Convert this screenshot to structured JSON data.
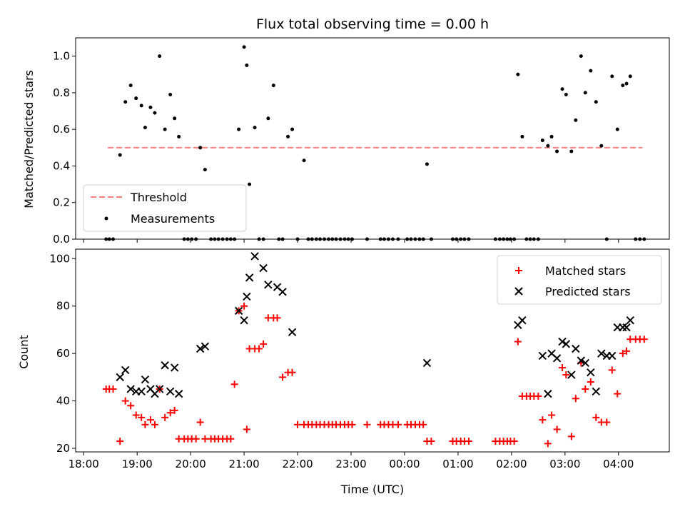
{
  "chart_data": [
    {
      "type": "scatter",
      "title": "Flux total observing time = 0.00 h",
      "xlabel": "",
      "ylabel": "Matched/Predicted stars",
      "ylim": [
        0,
        1.1
      ],
      "yticks": [
        "0.0",
        "0.2",
        "0.4",
        "0.6",
        "0.8",
        "1.0"
      ],
      "legend": {
        "placement": "lower-left",
        "entries": [
          "Threshold",
          "Measurements"
        ]
      },
      "threshold": {
        "name": "Threshold",
        "value": 0.5,
        "x_start": 18.45,
        "x_end": 28.45,
        "color": "#ff7f7f"
      },
      "series": [
        {
          "name": "Measurements",
          "color": "#000000",
          "points": [
            [
              18.42,
              0
            ],
            [
              18.48,
              0
            ],
            [
              18.55,
              0
            ],
            [
              18.68,
              0.46
            ],
            [
              18.78,
              0.75
            ],
            [
              18.88,
              0.84
            ],
            [
              18.98,
              0.77
            ],
            [
              19.08,
              0.73
            ],
            [
              19.15,
              0.61
            ],
            [
              19.25,
              0.72
            ],
            [
              19.33,
              0.69
            ],
            [
              19.42,
              1.0
            ],
            [
              19.52,
              0.6
            ],
            [
              19.62,
              0.79
            ],
            [
              19.7,
              0.66
            ],
            [
              19.78,
              0.56
            ],
            [
              19.88,
              0
            ],
            [
              19.95,
              0
            ],
            [
              20.02,
              0
            ],
            [
              20.1,
              0
            ],
            [
              20.18,
              0.5
            ],
            [
              20.27,
              0.38
            ],
            [
              20.38,
              0
            ],
            [
              20.45,
              0
            ],
            [
              20.52,
              0
            ],
            [
              20.6,
              0
            ],
            [
              20.68,
              0
            ],
            [
              20.75,
              0
            ],
            [
              20.82,
              0
            ],
            [
              20.9,
              0.6
            ],
            [
              21.0,
              1.05
            ],
            [
              21.05,
              0.95
            ],
            [
              21.1,
              0.3
            ],
            [
              21.2,
              0.61
            ],
            [
              21.28,
              0
            ],
            [
              21.36,
              0
            ],
            [
              21.45,
              0.66
            ],
            [
              21.55,
              0.84
            ],
            [
              21.65,
              0
            ],
            [
              21.72,
              0
            ],
            [
              21.82,
              0.56
            ],
            [
              21.9,
              0.6
            ],
            [
              22.0,
              0
            ],
            [
              22.12,
              0.43
            ],
            [
              22.2,
              0
            ],
            [
              22.27,
              0
            ],
            [
              22.35,
              0
            ],
            [
              22.42,
              0
            ],
            [
              22.5,
              0
            ],
            [
              22.58,
              0
            ],
            [
              22.65,
              0
            ],
            [
              22.72,
              0
            ],
            [
              22.8,
              0
            ],
            [
              22.88,
              0
            ],
            [
              22.95,
              0
            ],
            [
              23.02,
              0
            ],
            [
              23.3,
              0
            ],
            [
              23.55,
              0
            ],
            [
              23.62,
              0
            ],
            [
              23.7,
              0
            ],
            [
              23.78,
              0
            ],
            [
              23.88,
              0
            ],
            [
              24.05,
              0
            ],
            [
              24.12,
              0
            ],
            [
              24.2,
              0
            ],
            [
              24.28,
              0
            ],
            [
              24.35,
              0
            ],
            [
              24.42,
              0.41
            ],
            [
              24.5,
              0
            ],
            [
              24.9,
              0
            ],
            [
              24.97,
              0
            ],
            [
              25.05,
              0
            ],
            [
              25.12,
              0
            ],
            [
              25.2,
              0
            ],
            [
              25.7,
              0
            ],
            [
              25.78,
              0
            ],
            [
              25.85,
              0
            ],
            [
              25.92,
              0
            ],
            [
              25.98,
              0
            ],
            [
              26.05,
              0
            ],
            [
              26.12,
              0.9
            ],
            [
              26.2,
              0.56
            ],
            [
              26.28,
              0
            ],
            [
              26.35,
              0
            ],
            [
              26.42,
              0
            ],
            [
              26.5,
              0
            ],
            [
              26.58,
              0.54
            ],
            [
              26.68,
              0.51
            ],
            [
              26.75,
              0.56
            ],
            [
              26.85,
              0.48
            ],
            [
              26.95,
              0.82
            ],
            [
              27.02,
              0.79
            ],
            [
              27.12,
              0.48
            ],
            [
              27.2,
              0.65
            ],
            [
              27.3,
              1.0
            ],
            [
              27.38,
              0.8
            ],
            [
              27.48,
              0.92
            ],
            [
              27.58,
              0.75
            ],
            [
              27.68,
              0.51
            ],
            [
              27.78,
              0
            ],
            [
              27.88,
              0.89
            ],
            [
              27.98,
              0.6
            ],
            [
              28.08,
              0.84
            ],
            [
              28.15,
              0.85
            ],
            [
              28.22,
              0.89
            ],
            [
              28.32,
              0
            ],
            [
              28.4,
              0
            ],
            [
              28.48,
              0
            ]
          ]
        }
      ]
    },
    {
      "type": "scatter",
      "title": "",
      "xlabel": "Time (UTC)",
      "ylabel": "Count",
      "xlim": [
        17.85,
        28.95
      ],
      "ylim": [
        18.5,
        104
      ],
      "yticks": [
        "20",
        "40",
        "60",
        "80",
        "100"
      ],
      "xticks": [
        {
          "value": 18,
          "label": "18:00"
        },
        {
          "value": 19,
          "label": "19:00"
        },
        {
          "value": 20,
          "label": "20:00"
        },
        {
          "value": 21,
          "label": "21:00"
        },
        {
          "value": 22,
          "label": "22:00"
        },
        {
          "value": 23,
          "label": "23:00"
        },
        {
          "value": 24,
          "label": "00:00"
        },
        {
          "value": 25,
          "label": "01:00"
        },
        {
          "value": 26,
          "label": "02:00"
        },
        {
          "value": 27,
          "label": "03:00"
        },
        {
          "value": 28,
          "label": "04:00"
        }
      ],
      "legend": {
        "placement": "top-right",
        "entries": [
          "Matched stars",
          "Predicted stars"
        ]
      },
      "series": [
        {
          "name": "Matched stars",
          "marker": "plus",
          "color": "#ff0000",
          "points": [
            [
              18.42,
              45
            ],
            [
              18.48,
              45
            ],
            [
              18.55,
              45
            ],
            [
              18.68,
              23
            ],
            [
              18.78,
              40
            ],
            [
              18.88,
              38
            ],
            [
              18.98,
              34
            ],
            [
              19.08,
              33
            ],
            [
              19.15,
              30
            ],
            [
              19.25,
              32
            ],
            [
              19.33,
              30
            ],
            [
              19.42,
              45
            ],
            [
              19.52,
              33
            ],
            [
              19.62,
              35
            ],
            [
              19.7,
              36
            ],
            [
              19.78,
              24
            ],
            [
              19.88,
              24
            ],
            [
              19.95,
              24
            ],
            [
              20.02,
              24
            ],
            [
              20.1,
              24
            ],
            [
              20.18,
              31
            ],
            [
              20.27,
              24
            ],
            [
              20.38,
              24
            ],
            [
              20.45,
              24
            ],
            [
              20.52,
              24
            ],
            [
              20.6,
              24
            ],
            [
              20.68,
              24
            ],
            [
              20.75,
              24
            ],
            [
              20.82,
              47
            ],
            [
              20.9,
              78
            ],
            [
              21.0,
              80
            ],
            [
              21.05,
              28
            ],
            [
              21.1,
              62
            ],
            [
              21.2,
              62
            ],
            [
              21.28,
              62
            ],
            [
              21.36,
              64
            ],
            [
              21.45,
              75
            ],
            [
              21.55,
              75
            ],
            [
              21.62,
              75
            ],
            [
              21.72,
              50
            ],
            [
              21.82,
              52
            ],
            [
              21.9,
              52
            ],
            [
              22.0,
              30
            ],
            [
              22.12,
              30
            ],
            [
              22.2,
              30
            ],
            [
              22.27,
              30
            ],
            [
              22.35,
              30
            ],
            [
              22.42,
              30
            ],
            [
              22.5,
              30
            ],
            [
              22.58,
              30
            ],
            [
              22.65,
              30
            ],
            [
              22.72,
              30
            ],
            [
              22.8,
              30
            ],
            [
              22.88,
              30
            ],
            [
              22.95,
              30
            ],
            [
              23.02,
              30
            ],
            [
              23.3,
              30
            ],
            [
              23.55,
              30
            ],
            [
              23.62,
              30
            ],
            [
              23.7,
              30
            ],
            [
              23.78,
              30
            ],
            [
              23.88,
              30
            ],
            [
              24.05,
              30
            ],
            [
              24.12,
              30
            ],
            [
              24.2,
              30
            ],
            [
              24.28,
              30
            ],
            [
              24.35,
              30
            ],
            [
              24.42,
              23
            ],
            [
              24.5,
              23
            ],
            [
              24.9,
              23
            ],
            [
              24.97,
              23
            ],
            [
              25.05,
              23
            ],
            [
              25.12,
              23
            ],
            [
              25.2,
              23
            ],
            [
              25.7,
              23
            ],
            [
              25.78,
              23
            ],
            [
              25.85,
              23
            ],
            [
              25.92,
              23
            ],
            [
              25.98,
              23
            ],
            [
              26.05,
              23
            ],
            [
              26.12,
              65
            ],
            [
              26.2,
              42
            ],
            [
              26.28,
              42
            ],
            [
              26.35,
              42
            ],
            [
              26.42,
              42
            ],
            [
              26.5,
              42
            ],
            [
              26.58,
              32
            ],
            [
              26.68,
              22
            ],
            [
              26.75,
              34
            ],
            [
              26.85,
              28
            ],
            [
              26.95,
              54
            ],
            [
              27.02,
              51
            ],
            [
              27.12,
              25
            ],
            [
              27.2,
              41
            ],
            [
              27.3,
              56
            ],
            [
              27.38,
              45
            ],
            [
              27.48,
              48
            ],
            [
              27.58,
              33
            ],
            [
              27.68,
              31
            ],
            [
              27.78,
              31
            ],
            [
              27.88,
              53
            ],
            [
              27.98,
              43
            ],
            [
              28.08,
              60
            ],
            [
              28.15,
              61
            ],
            [
              28.22,
              66
            ],
            [
              28.32,
              66
            ],
            [
              28.4,
              66
            ],
            [
              28.48,
              66
            ]
          ]
        },
        {
          "name": "Predicted stars",
          "marker": "x",
          "color": "#000000",
          "points": [
            [
              18.68,
              50
            ],
            [
              18.78,
              53
            ],
            [
              18.88,
              45
            ],
            [
              18.98,
              44
            ],
            [
              19.08,
              44
            ],
            [
              19.15,
              49
            ],
            [
              19.25,
              45
            ],
            [
              19.33,
              43
            ],
            [
              19.42,
              45
            ],
            [
              19.52,
              55
            ],
            [
              19.62,
              44
            ],
            [
              19.7,
              54
            ],
            [
              19.78,
              43
            ],
            [
              20.18,
              62
            ],
            [
              20.27,
              63
            ],
            [
              20.9,
              78
            ],
            [
              21.0,
              74
            ],
            [
              21.05,
              84
            ],
            [
              21.1,
              92
            ],
            [
              21.2,
              101
            ],
            [
              21.36,
              96
            ],
            [
              21.45,
              89
            ],
            [
              21.62,
              88
            ],
            [
              21.72,
              86
            ],
            [
              21.9,
              69
            ],
            [
              24.42,
              56
            ],
            [
              26.12,
              72
            ],
            [
              26.2,
              74
            ],
            [
              26.58,
              59
            ],
            [
              26.68,
              43
            ],
            [
              26.75,
              60
            ],
            [
              26.85,
              58
            ],
            [
              26.95,
              65
            ],
            [
              27.02,
              64
            ],
            [
              27.12,
              51
            ],
            [
              27.2,
              62
            ],
            [
              27.3,
              57
            ],
            [
              27.38,
              56
            ],
            [
              27.48,
              52
            ],
            [
              27.58,
              44
            ],
            [
              27.68,
              60
            ],
            [
              27.78,
              59
            ],
            [
              27.88,
              59
            ],
            [
              27.98,
              71
            ],
            [
              28.08,
              71
            ],
            [
              28.15,
              71
            ],
            [
              28.22,
              74
            ]
          ]
        }
      ]
    }
  ]
}
